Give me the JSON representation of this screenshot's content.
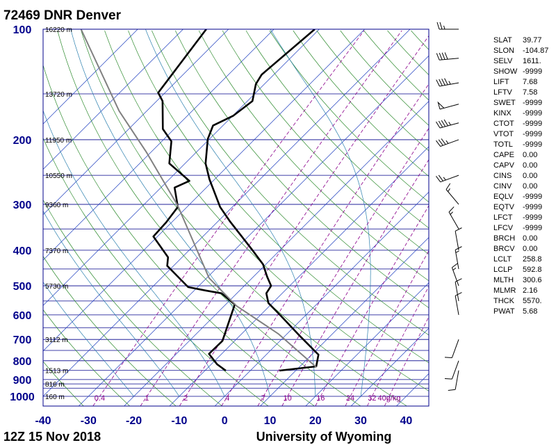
{
  "chart_data": {
    "type": "skewt",
    "title": "72469 DNR Denver",
    "footer_left": "12Z 15 Nov 2018",
    "footer_right": "University of Wyoming",
    "ylim": [
      1000,
      100
    ],
    "yticks": [
      100,
      200,
      300,
      400,
      500,
      600,
      700,
      800,
      900,
      1000
    ],
    "xlim": [
      -40,
      45
    ],
    "xticks": [
      -40,
      -30,
      -20,
      -10,
      0,
      10,
      20,
      30,
      40
    ],
    "isobars": [
      100,
      150,
      200,
      250,
      300,
      350,
      400,
      450,
      500,
      550,
      600,
      650,
      700,
      750,
      800,
      850,
      900,
      925,
      950,
      1000
    ],
    "isotherms": [
      -100,
      -90,
      -80,
      -70,
      -60,
      -50,
      -40,
      -30,
      -20,
      -10,
      0,
      10,
      20,
      30,
      40
    ],
    "dry_adiabats": [
      240,
      250,
      260,
      270,
      280,
      290,
      300,
      310,
      320,
      330,
      340,
      350,
      360,
      370,
      380,
      390,
      400,
      410,
      420,
      430,
      440,
      450,
      460
    ],
    "moist_adiabats": [
      -20,
      -10,
      0,
      10,
      20,
      30
    ],
    "mixing_ratios": [
      {
        "value": 0.4,
        "label": "0.4"
      },
      {
        "value": 1,
        "label": "1"
      },
      {
        "value": 2,
        "label": "2"
      },
      {
        "value": 4,
        "label": "4"
      },
      {
        "value": 7,
        "label": "7"
      },
      {
        "value": 10,
        "label": "10"
      },
      {
        "value": 16,
        "label": "16"
      },
      {
        "value": 24,
        "label": "24"
      },
      {
        "value": 32,
        "label": "32"
      },
      {
        "value": 40,
        "label": "40g/kg"
      }
    ],
    "heights": [
      {
        "p": 100,
        "label": "16220 m"
      },
      {
        "p": 150,
        "label": "13720 m"
      },
      {
        "p": 200,
        "label": "11950 m"
      },
      {
        "p": 250,
        "label": "10550 m"
      },
      {
        "p": 300,
        "label": "9360 m"
      },
      {
        "p": 400,
        "label": "7370 m"
      },
      {
        "p": 500,
        "label": "5730 m"
      },
      {
        "p": 700,
        "label": "3112 m"
      },
      {
        "p": 850,
        "label": "1513 m"
      },
      {
        "p": 925,
        "label": "816 m"
      },
      {
        "p": 1000,
        "label": "160 m"
      }
    ],
    "series": [
      {
        "color": "#000000",
        "width": 2.6,
        "pressure": [
          851,
          829,
          770,
          681,
          603,
          557,
          524,
          500,
          472,
          437,
          397,
          333,
          305,
          256,
          232,
          199,
          183,
          172,
          157,
          141,
          133,
          100
        ],
        "temperature": [
          6.4,
          13.6,
          11.5,
          2.9,
          -5.4,
          -10.9,
          -13.5,
          -14.1,
          -17.0,
          -20.6,
          -26.5,
          -37.5,
          -42.7,
          -51.2,
          -55.5,
          -60.4,
          -62.2,
          -59.9,
          -58.9,
          -61.9,
          -62.7,
          -61.0
        ]
      },
      {
        "color": "#000000",
        "width": 2.6,
        "pressure": [
          851,
          818,
          766,
          706,
          562,
          524,
          515,
          504,
          441,
          418,
          367,
          336,
          305,
          270,
          259,
          232,
          202,
          187,
          157,
          149,
          100
        ],
        "temperature": [
          -5.4,
          -8.7,
          -12.8,
          -12.7,
          -18.0,
          -23.4,
          -27.5,
          -32.1,
          -41.4,
          -43.1,
          -50.9,
          -51.2,
          -52.0,
          -57.0,
          -55.2,
          -63.5,
          -67.9,
          -72.5,
          -78.7,
          -81.5,
          -84.9
        ]
      },
      {
        "color": "#808080",
        "width": 2,
        "pressure": [
          833,
          675,
          567,
          476,
          302,
          217,
          167,
          100
        ],
        "temperature": [
          13.8,
          -2.0,
          -17.3,
          -29.5,
          -52.4,
          -70.8,
          -86.1,
          -112.5
        ]
      }
    ],
    "winds": [
      {
        "p": 100,
        "dir": 270,
        "speed": 25
      },
      {
        "p": 120,
        "dir": 265,
        "speed": 40
      },
      {
        "p": 140,
        "dir": 260,
        "speed": 45
      },
      {
        "p": 160,
        "dir": 255,
        "speed": 50
      },
      {
        "p": 180,
        "dir": 255,
        "speed": 45
      },
      {
        "p": 200,
        "dir": 250,
        "speed": 35
      },
      {
        "p": 250,
        "dir": 250,
        "speed": 25
      },
      {
        "p": 300,
        "dir": 320,
        "speed": 15
      },
      {
        "p": 350,
        "dir": 330,
        "speed": 15
      },
      {
        "p": 400,
        "dir": 350,
        "speed": 10
      },
      {
        "p": 450,
        "dir": 350,
        "speed": 15
      },
      {
        "p": 500,
        "dir": 340,
        "speed": 15
      },
      {
        "p": 550,
        "dir": 350,
        "speed": 10
      },
      {
        "p": 600,
        "dir": 350,
        "speed": 10
      },
      {
        "p": 700,
        "dir": 200,
        "speed": 10
      },
      {
        "p": 800,
        "dir": 200,
        "speed": 10
      },
      {
        "p": 850,
        "dir": 190,
        "speed": 10
      }
    ],
    "stats": [
      [
        "SLAT",
        "39.77"
      ],
      [
        "SLON",
        "-104.87"
      ],
      [
        "SELV",
        "1611."
      ],
      [
        "SHOW",
        "-9999"
      ],
      [
        "LIFT",
        "7.68"
      ],
      [
        "LFTV",
        "7.58"
      ],
      [
        "SWET",
        "-9999"
      ],
      [
        "KINX",
        "-9999"
      ],
      [
        "CTOT",
        "-9999"
      ],
      [
        "VTOT",
        "-9999"
      ],
      [
        "TOTL",
        "-9999"
      ],
      [
        "CAPE",
        "0.00"
      ],
      [
        "CAPV",
        "0.00"
      ],
      [
        "CINS",
        "0.00"
      ],
      [
        "CINV",
        "0.00"
      ],
      [
        "EQLV",
        "-9999"
      ],
      [
        "EQTV",
        "-9999"
      ],
      [
        "LFCT",
        "-9999"
      ],
      [
        "LFCV",
        "-9999"
      ],
      [
        "BRCH",
        "0.00"
      ],
      [
        "BRCV",
        "0.00"
      ],
      [
        "LCLT",
        "258.8"
      ],
      [
        "LCLP",
        "592.8"
      ],
      [
        "MLTH",
        "300.6"
      ],
      [
        "MLMR",
        "2.16"
      ],
      [
        "THCK",
        "5570."
      ],
      [
        "PWAT",
        "5.68"
      ]
    ]
  }
}
